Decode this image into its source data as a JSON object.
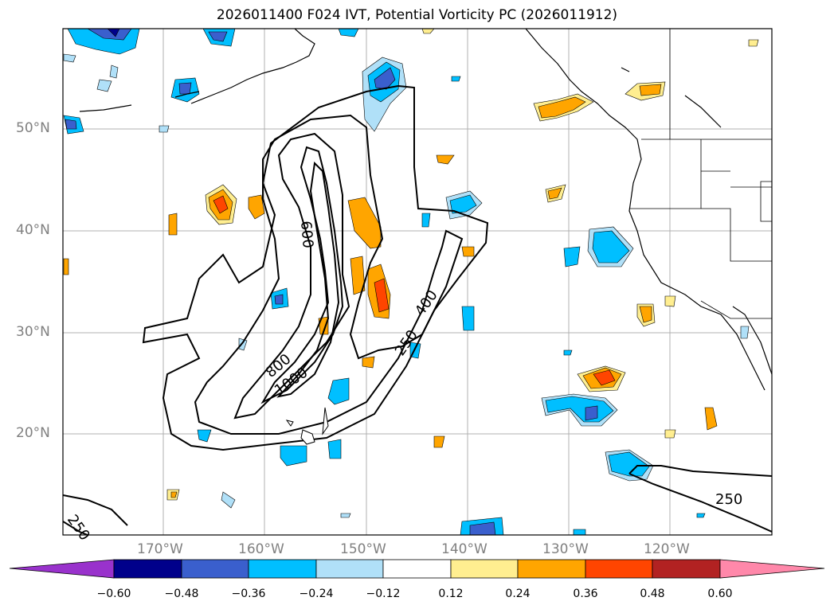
{
  "title": "2026011400 F024 IVT, Potential Vorticity PC (2026011912)",
  "map": {
    "lat_labels": [
      "50°N",
      "40°N",
      "30°N",
      "20°N"
    ],
    "lon_labels": [
      "170°W",
      "160°W",
      "150°W",
      "140°W",
      "130°W",
      "120°W"
    ],
    "ivt_contour_labels": [
      "600",
      "800",
      "1000",
      "400",
      "250",
      "250",
      "250"
    ]
  },
  "colorbar": {
    "ticks": [
      "−0.60",
      "−0.48",
      "−0.36",
      "−0.24",
      "−0.12",
      "0.12",
      "0.24",
      "0.36",
      "0.48",
      "0.60"
    ],
    "colors": [
      "#9932cc",
      "#00008b",
      "#3a5fcd",
      "#00bfff",
      "#b0e0f8",
      "#ffffff",
      "#ffee90",
      "#ffa500",
      "#ff4500",
      "#b22222",
      "#ff88aa"
    ]
  }
}
